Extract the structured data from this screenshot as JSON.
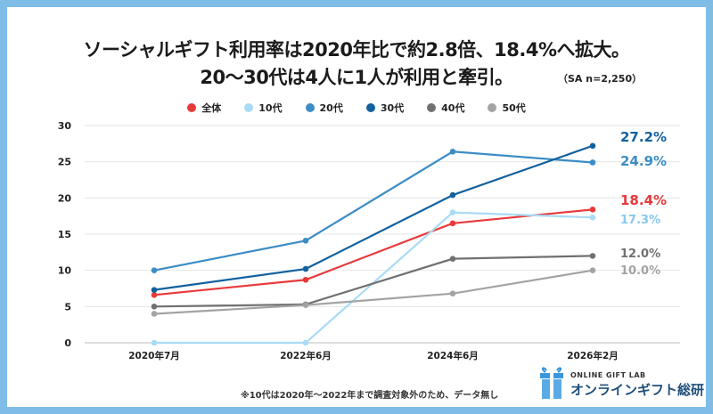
{
  "title_line1": "ソーシャルギフト利用率は2020年比で約2.8倍、18.4%へ拡大。",
  "title_line2": "20〜30代は4人に1人が利用と牽引。",
  "sample_note": "（SA n=2,250）",
  "footnote": "※10代は2020年〜2022年まで調査対象外のため、データ無し",
  "logo": {
    "sub": "ONLINE GIFT LAB",
    "main": "オンラインギフト総研",
    "icon": "gift-box-icon"
  },
  "chart_data": {
    "type": "line",
    "categories": [
      "2020年7月",
      "2022年6月",
      "2024年6月",
      "2026年2月"
    ],
    "ylim": [
      0,
      30
    ],
    "yticks": [
      "0",
      "5",
      "10",
      "15",
      "20",
      "25",
      "30"
    ],
    "grid": true,
    "legend_position": "top-center",
    "series": [
      {
        "name": "全体",
        "color": "#e8393a",
        "values": [
          6.6,
          8.7,
          16.5,
          18.4
        ],
        "end_label": "18.4%"
      },
      {
        "name": "10代",
        "color": "#a8dbf5",
        "values": [
          0,
          0,
          18.0,
          17.3
        ],
        "end_label": "17.3%"
      },
      {
        "name": "20代",
        "color": "#3c8dc5",
        "values": [
          10.0,
          14.1,
          26.4,
          24.9
        ],
        "end_label": "24.9%"
      },
      {
        "name": "30代",
        "color": "#12619e",
        "values": [
          7.3,
          10.2,
          20.4,
          27.2
        ],
        "end_label": "27.2%"
      },
      {
        "name": "40代",
        "color": "#707070",
        "values": [
          5.0,
          5.3,
          11.6,
          12.0
        ],
        "end_label": "12.0%"
      },
      {
        "name": "50代",
        "color": "#a3a3a3",
        "values": [
          4.0,
          5.2,
          6.8,
          10.0
        ],
        "end_label": "10.0%"
      }
    ]
  }
}
